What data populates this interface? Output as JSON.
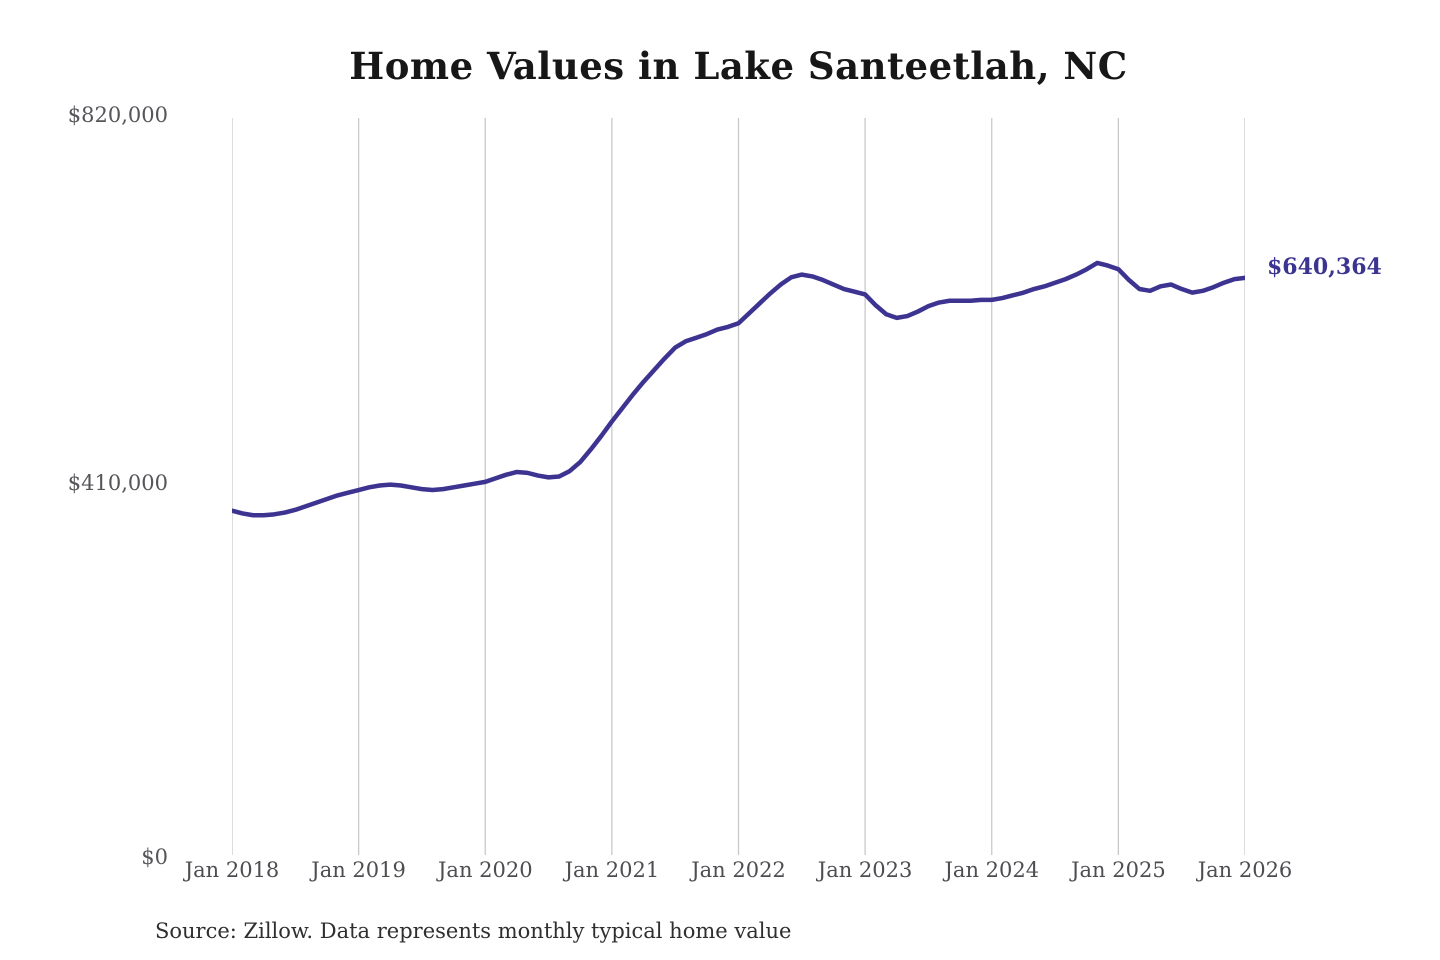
{
  "page": {
    "background": "#ffffff"
  },
  "chart_data": {
    "type": "line",
    "title": "Home Values in Lake Santeetlah, NC",
    "series_name": "Monthly typical home value",
    "x_start": "Jan 2018",
    "x_end": "Jan 2026",
    "frequency": "monthly",
    "xtick_labels": [
      "Jan 2018",
      "Jan 2019",
      "Jan 2020",
      "Jan 2021",
      "Jan 2022",
      "Jan 2023",
      "Jan 2024",
      "Jan 2025",
      "Jan 2026"
    ],
    "ytick_labels": [
      "$820,000",
      "$410,000",
      "$0"
    ],
    "yticks": [
      820000,
      410000,
      0
    ],
    "ylim": [
      0,
      820000
    ],
    "grid": "vertical-only",
    "legend": "none",
    "end_label": "$640,364",
    "end_value": 640364,
    "line_color": "#3d3491",
    "grid_color": "#c9c9c9",
    "end_label_color": "#3b3490",
    "values": [
      382000,
      379000,
      377000,
      377000,
      378000,
      380000,
      383000,
      387000,
      391000,
      395000,
      399000,
      402000,
      405000,
      408000,
      410000,
      411000,
      410000,
      408000,
      406000,
      405000,
      406000,
      408000,
      410000,
      412000,
      414000,
      418000,
      422000,
      425000,
      424000,
      421000,
      419000,
      420000,
      426000,
      436000,
      450000,
      465000,
      481000,
      496000,
      511000,
      525000,
      538000,
      551000,
      563000,
      570000,
      574000,
      578000,
      583000,
      586000,
      590000,
      601000,
      612000,
      623000,
      633000,
      641000,
      644000,
      642000,
      638000,
      633000,
      628000,
      625000,
      622000,
      610000,
      600000,
      596000,
      598000,
      603000,
      609000,
      613000,
      615000,
      615000,
      615000,
      616000,
      616000,
      618000,
      621000,
      624000,
      628000,
      631000,
      635000,
      639000,
      644000,
      650000,
      657000,
      654000,
      650000,
      638000,
      628000,
      626000,
      631000,
      633000,
      628000,
      624000,
      626000,
      630000,
      635000,
      639000,
      640364
    ]
  },
  "footer": {
    "source": "Source: Zillow. Data represents monthly typical home value"
  }
}
